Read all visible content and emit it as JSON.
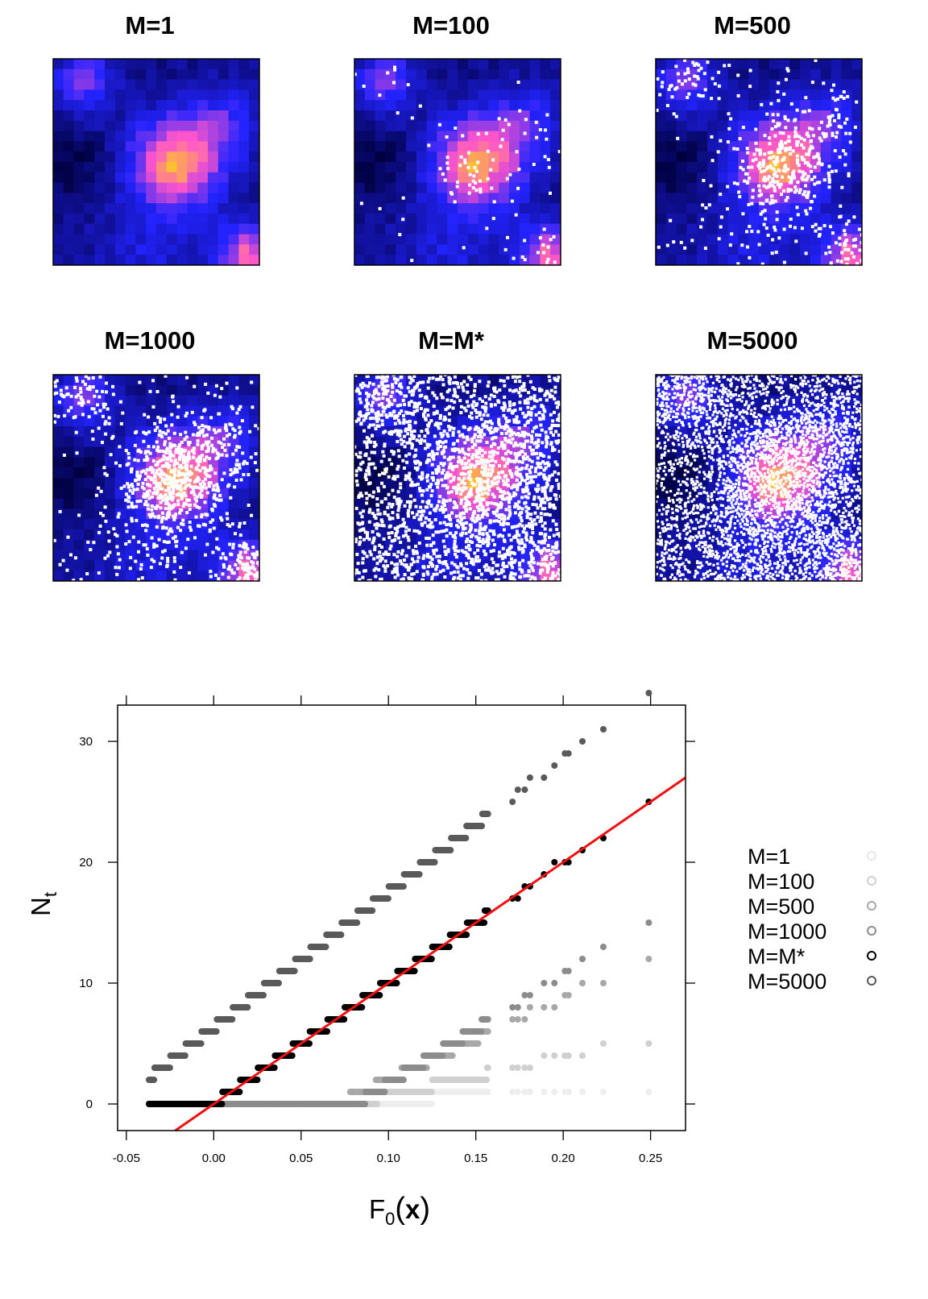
{
  "colors": {
    "low": "#000040",
    "mid": "#2323ff",
    "high": "#ff55cc",
    "peak": "#ffc030",
    "points": "#ffffff",
    "fit_line": "#ee1111"
  },
  "panels": [
    {
      "title": "M=1",
      "event_points": 0
    },
    {
      "title": "M=100",
      "event_points": 110
    },
    {
      "title": "M=500",
      "event_points": 520
    },
    {
      "title": "M=1000",
      "event_points": 1000
    },
    {
      "title": "M=M*",
      "event_points": 2200
    },
    {
      "title": "M=5000",
      "event_points": 4000
    }
  ],
  "chart_data": {
    "type": "scatter",
    "xlabel_main": "F",
    "xlabel_sub": "0",
    "xlabel_arg": "x",
    "ylabel_main": "N",
    "ylabel_sub": "t",
    "xlim": [
      -0.055,
      0.27
    ],
    "ylim": [
      -2.2,
      33
    ],
    "x_ticks": [
      -0.05,
      0.0,
      0.05,
      0.1,
      0.15,
      0.2,
      0.25
    ],
    "x_tick_labels": [
      "-0.05",
      "0.00",
      "0.05",
      "0.10",
      "0.15",
      "0.20",
      "0.25"
    ],
    "y_ticks": [
      0,
      10,
      20,
      30
    ],
    "y_tick_labels": [
      "0",
      "10",
      "20",
      "30"
    ],
    "grid": false,
    "legend_position": "right",
    "series": [
      {
        "name": "M=1",
        "color": "#eeeeee",
        "slope": 4,
        "intercept": 0
      },
      {
        "name": "M=100",
        "color": "#d0d0d0",
        "slope": 32,
        "intercept": -2.5
      },
      {
        "name": "M=500",
        "color": "#a8a8a8",
        "slope": 68,
        "intercept": -4.8
      },
      {
        "name": "M=1000",
        "color": "#8c8c8c",
        "slope": 90,
        "intercept": -7.3
      },
      {
        "name": "M=M*",
        "color": "#000000",
        "slope": 100,
        "intercept": 0
      },
      {
        "name": "M=5000",
        "color": "#5a5a5a",
        "slope": 112,
        "intercept": 6.3
      }
    ],
    "fit_line": {
      "slope": 100,
      "intercept": 0
    }
  }
}
